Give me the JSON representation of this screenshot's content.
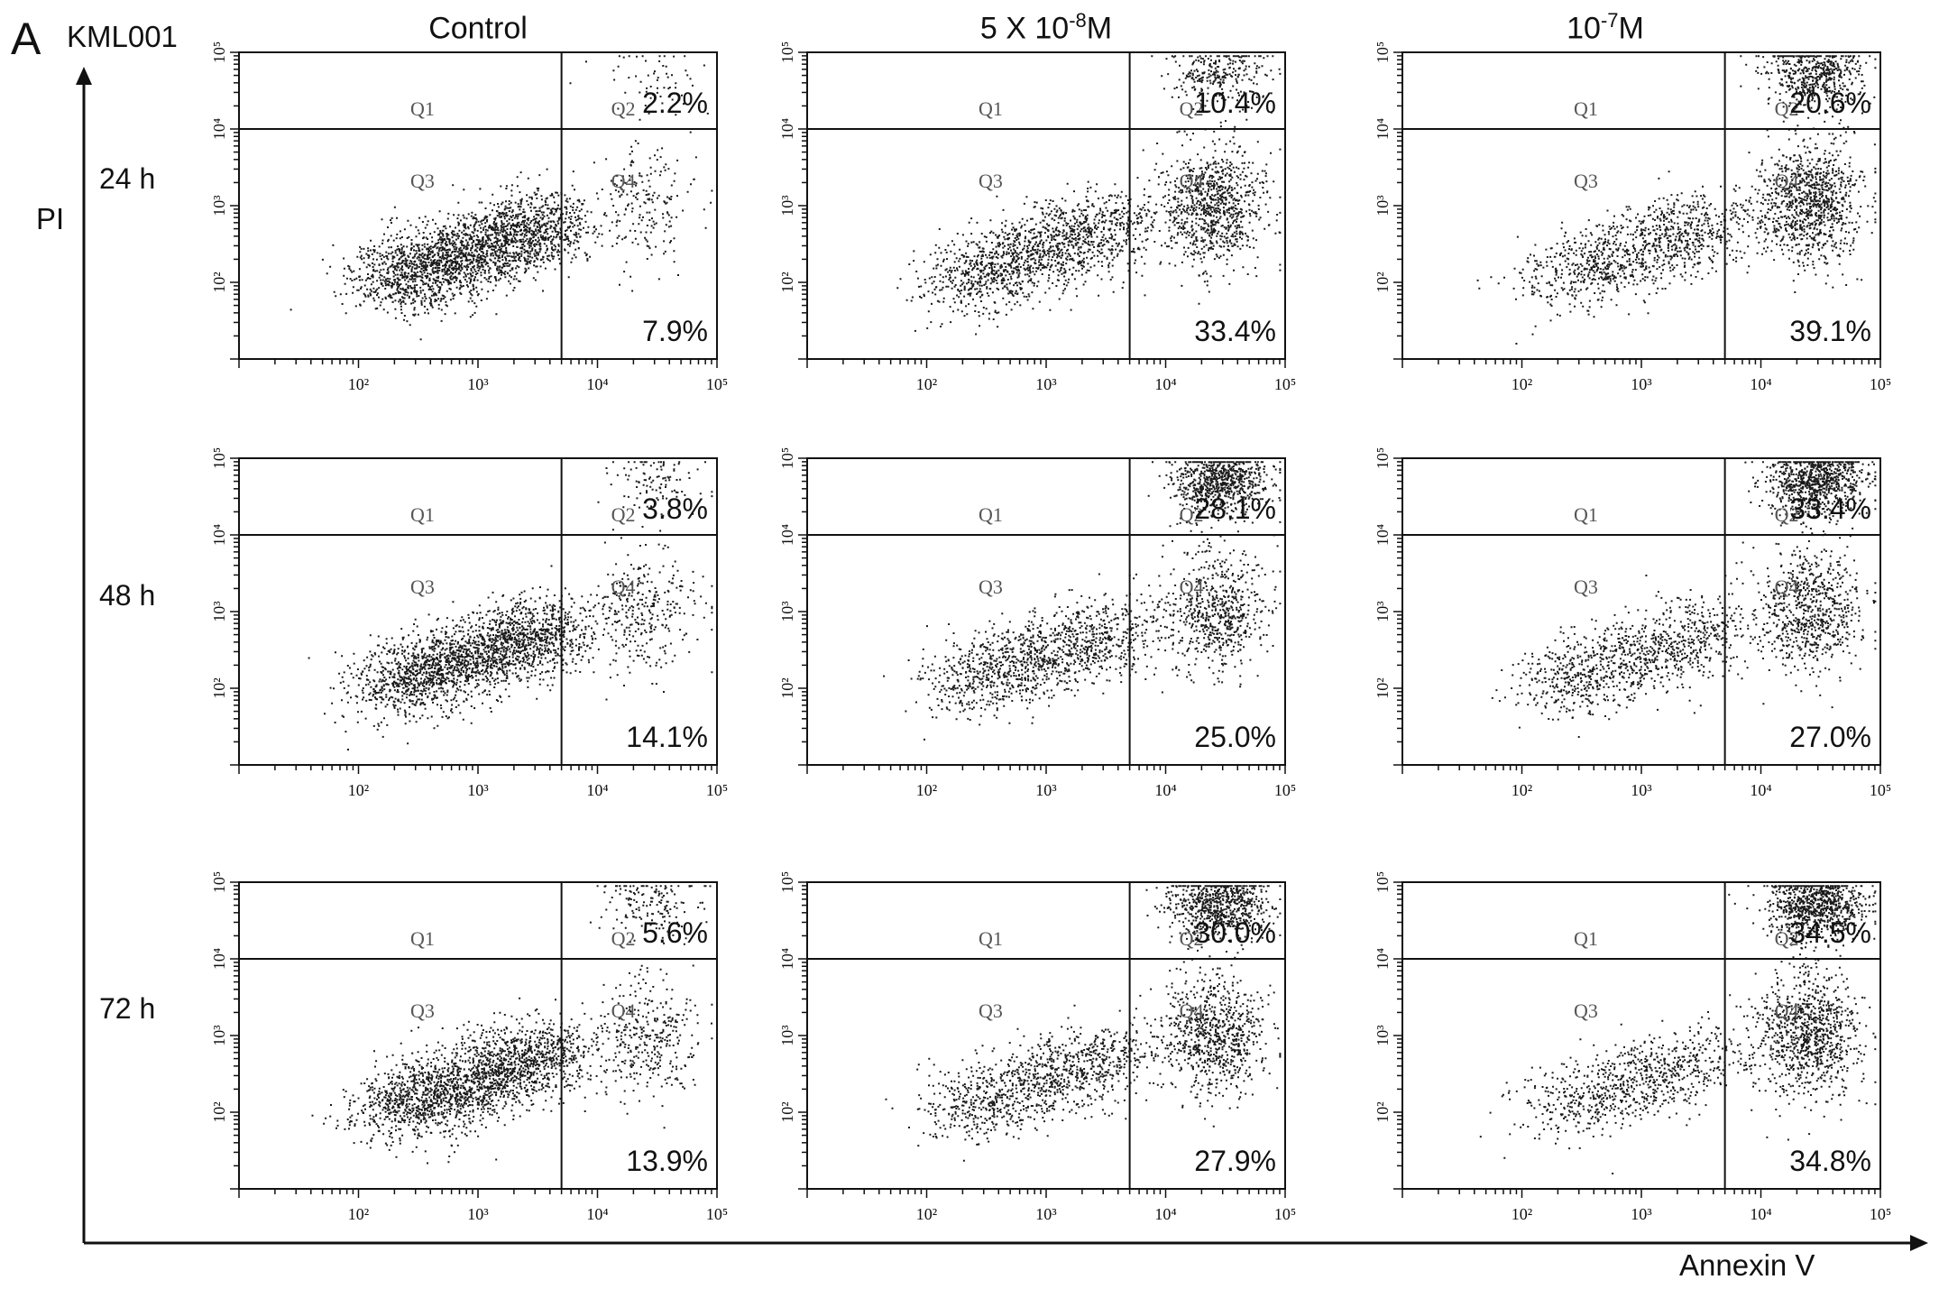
{
  "figure": {
    "panel_letter": "A",
    "cell_line": "KML001",
    "y_axis_label": "PI",
    "x_axis_label": "Annexin V",
    "columns": [
      "Control",
      "5 X 10-8M",
      "10-7M"
    ],
    "column_titles": [
      {
        "base": "Control",
        "sup": "",
        "tail": ""
      },
      {
        "base": "5 X 10",
        "sup": "-8",
        "tail": "M"
      },
      {
        "base": "10",
        "sup": "-7",
        "tail": "M"
      }
    ],
    "rows": [
      "24 h",
      "48 h",
      "72 h"
    ]
  },
  "chart_data": {
    "type": "scatter",
    "description_axes": {
      "x": {
        "label": "Annexin V",
        "scale": "log",
        "range": [
          10,
          100000
        ],
        "tick_labels": [
          "10^2",
          "10^3",
          "10^4",
          "10^5"
        ]
      },
      "y": {
        "label": "PI",
        "scale": "log",
        "range": [
          10,
          100000
        ],
        "tick_labels": [
          "10^2",
          "10^3",
          "10^4",
          "10^5"
        ]
      }
    },
    "quadrant_labels": [
      "Q1",
      "Q2",
      "Q3",
      "Q4"
    ],
    "panels": [
      {
        "row": "24 h",
        "column": "Control",
        "late_apoptosis_Q2": "2.2%",
        "early_apoptosis_Q4": "7.9%"
      },
      {
        "row": "24 h",
        "column": "5 X 10-8M",
        "late_apoptosis_Q2": "10.4%",
        "early_apoptosis_Q4": "33.4%"
      },
      {
        "row": "24 h",
        "column": "10-7M",
        "late_apoptosis_Q2": "20.6%",
        "early_apoptosis_Q4": "39.1%"
      },
      {
        "row": "48 h",
        "column": "Control",
        "late_apoptosis_Q2": "3.8%",
        "early_apoptosis_Q4": "14.1%"
      },
      {
        "row": "48 h",
        "column": "5 X 10-8M",
        "late_apoptosis_Q2": "28.1%",
        "early_apoptosis_Q4": "25.0%"
      },
      {
        "row": "48 h",
        "column": "10-7M",
        "late_apoptosis_Q2": "33.4%",
        "early_apoptosis_Q4": "27.0%"
      },
      {
        "row": "72 h",
        "column": "Control",
        "late_apoptosis_Q2": "5.6%",
        "early_apoptosis_Q4": "13.9%"
      },
      {
        "row": "72 h",
        "column": "5 X 10-8M",
        "late_apoptosis_Q2": "30.0%",
        "early_apoptosis_Q4": "27.9%"
      },
      {
        "row": "72 h",
        "column": "10-7M",
        "late_apoptosis_Q2": "34.5%",
        "early_apoptosis_Q4": "34.8%"
      }
    ],
    "quadrant_gate": {
      "x": 5000,
      "y": 10000
    },
    "colors": {
      "points": "#1a1a1a",
      "axes": "#111111",
      "background": "#ffffff"
    }
  }
}
